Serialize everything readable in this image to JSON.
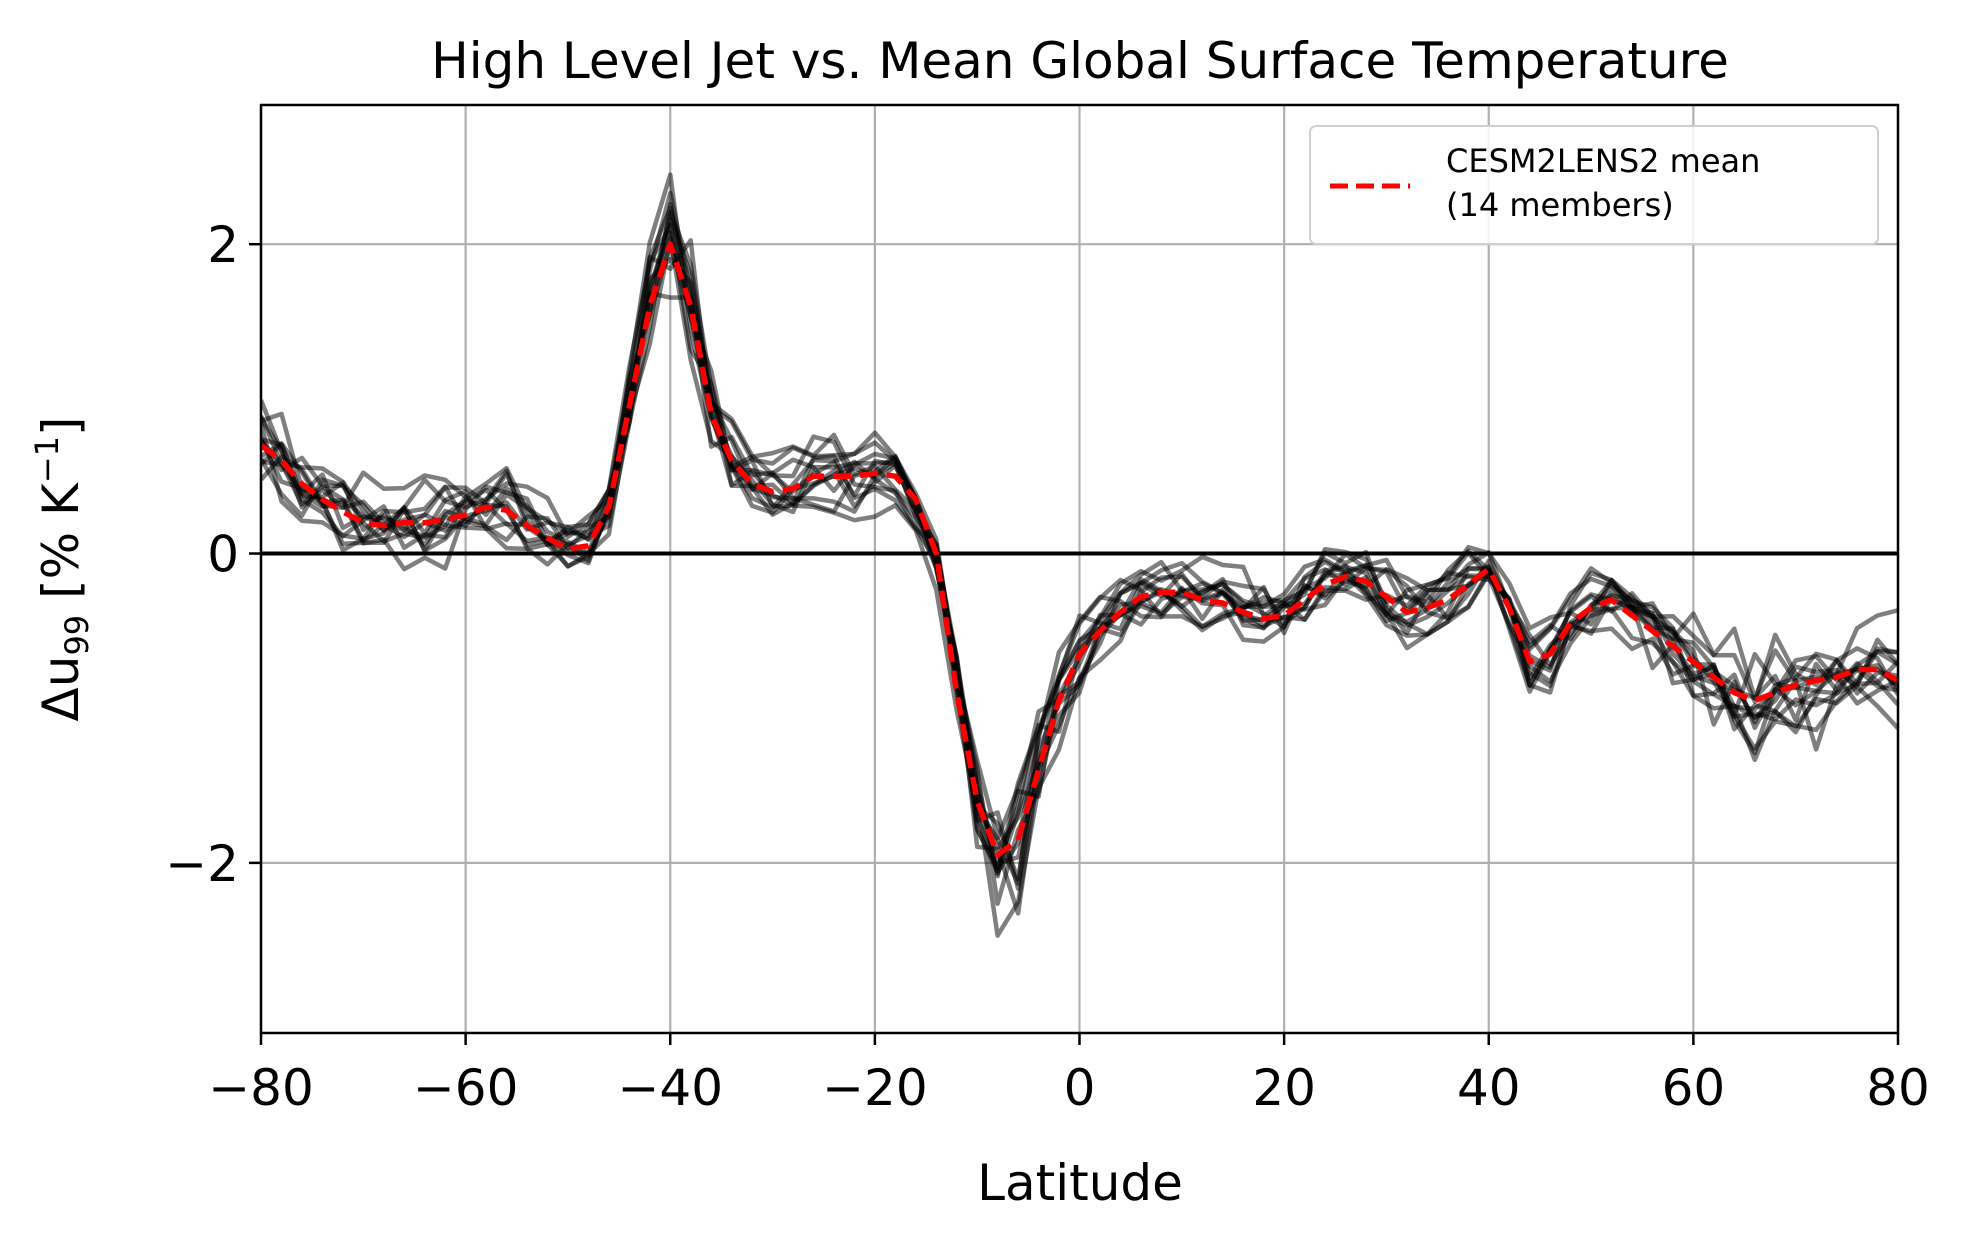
{
  "chart_data": {
    "type": "line",
    "title": "High Level Jet vs. Mean Global Surface Temperature",
    "xlabel": "Latitude",
    "ylabel_main": "Δu",
    "ylabel_sub": "99",
    "ylabel_units_open": " [% K",
    "ylabel_units_sup": "−1",
    "ylabel_units_close": "]",
    "xlim": [
      -80,
      80
    ],
    "ylim": [
      -3.1,
      2.9
    ],
    "xticks": [
      -80,
      -60,
      -40,
      -20,
      0,
      20,
      40,
      60,
      80
    ],
    "xtick_labels": [
      "−80",
      "−60",
      "−40",
      "−20",
      "0",
      "20",
      "40",
      "60",
      "80"
    ],
    "yticks": [
      -2,
      0,
      2
    ],
    "ytick_labels": [
      "−2",
      "0",
      "2"
    ],
    "grid": true,
    "zero_line": 0,
    "legend": {
      "placement": "top-right",
      "label_line1": "CESM2LENS2 mean",
      "label_line2": "(14 members)"
    },
    "colors": {
      "mean": "#ff0000",
      "member": "#000000",
      "grid": "#b0b0b0"
    },
    "member_count": 14,
    "mean_series": {
      "name": "CESM2LENS2 mean (14 members)",
      "x": [
        -80,
        -78,
        -76,
        -74,
        -72,
        -70,
        -68,
        -66,
        -64,
        -62,
        -60,
        -58,
        -56,
        -54,
        -52,
        -50,
        -48,
        -46,
        -44,
        -42,
        -40,
        -38,
        -36,
        -34,
        -32,
        -30,
        -28,
        -26,
        -24,
        -22,
        -20,
        -18,
        -16,
        -14,
        -12,
        -10,
        -8,
        -6,
        -4,
        -2,
        0,
        2,
        4,
        6,
        8,
        10,
        12,
        14,
        16,
        18,
        20,
        22,
        24,
        26,
        28,
        30,
        32,
        34,
        36,
        38,
        40,
        42,
        44,
        46,
        48,
        50,
        52,
        54,
        56,
        58,
        60,
        62,
        64,
        66,
        68,
        70,
        72,
        74,
        76,
        78,
        80
      ],
      "y": [
        0.7,
        0.6,
        0.45,
        0.35,
        0.27,
        0.2,
        0.18,
        0.2,
        0.2,
        0.22,
        0.25,
        0.3,
        0.28,
        0.18,
        0.1,
        0.03,
        0.05,
        0.3,
        0.95,
        1.6,
        2.0,
        1.6,
        0.9,
        0.6,
        0.45,
        0.4,
        0.42,
        0.5,
        0.5,
        0.5,
        0.52,
        0.5,
        0.35,
        0.0,
        -0.9,
        -1.6,
        -1.95,
        -1.85,
        -1.4,
        -0.95,
        -0.65,
        -0.5,
        -0.38,
        -0.28,
        -0.25,
        -0.25,
        -0.3,
        -0.32,
        -0.38,
        -0.42,
        -0.4,
        -0.3,
        -0.2,
        -0.15,
        -0.18,
        -0.28,
        -0.38,
        -0.35,
        -0.3,
        -0.2,
        -0.1,
        -0.35,
        -0.7,
        -0.65,
        -0.45,
        -0.35,
        -0.3,
        -0.4,
        -0.5,
        -0.6,
        -0.7,
        -0.8,
        -0.9,
        -0.95,
        -0.9,
        -0.85,
        -0.82,
        -0.8,
        -0.75,
        -0.75,
        -0.82
      ]
    }
  }
}
